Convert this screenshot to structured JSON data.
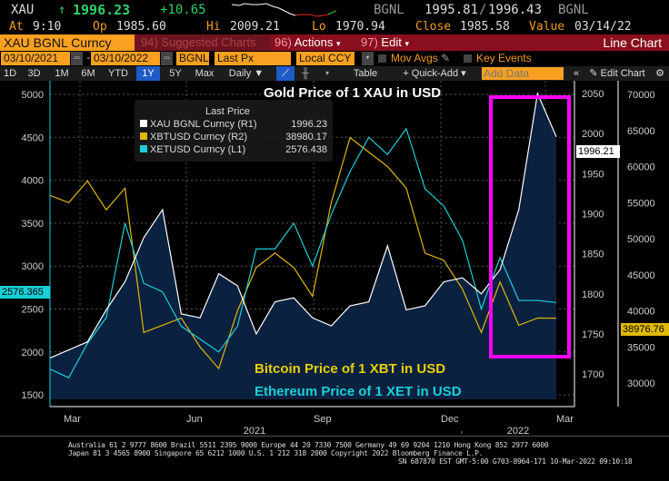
{
  "quote": {
    "ticker": "XAU",
    "arrow": "↑",
    "last": "1996.23",
    "change": "+10.65",
    "source": "BGNL",
    "bid_ask": "1995.81",
    "ask": "1996.43",
    "source2": "BGNL",
    "at_label": "At",
    "at": "9:10",
    "op_label": "Op",
    "op": "1985.60",
    "hi_label": "Hi",
    "hi": "2009.21",
    "lo_label": "Lo",
    "lo": "1970.94",
    "close_label": "Close",
    "close": "1985.58",
    "value_label": "Value",
    "value": "03/14/22"
  },
  "menu": {
    "security": "XAU BGNL Curncy",
    "suggested_num": "94)",
    "suggested": "Suggested Charts",
    "actions_num": "96)",
    "actions": "Actions",
    "edit_num": "97)",
    "edit": "Edit",
    "chart_type": "Line Chart"
  },
  "controls": {
    "start": "03/10/2021",
    "sep": "-",
    "end": "03/10/2022",
    "source": "BGNL",
    "field": "Last Px",
    "ccy": "Local CCY",
    "mov_avgs": "Mov Avgs",
    "key_events": "Key Events"
  },
  "toolbar": {
    "periods": [
      "1D",
      "3D",
      "1M",
      "6M",
      "YTD",
      "1Y",
      "5Y",
      "Max"
    ],
    "selected": "1Y",
    "freq": "Daily ▼",
    "table": "Table",
    "quick_add": "+ Quick-Add ▾",
    "add_data_placeholder": "Add Data",
    "collapse": "«",
    "edit_chart": "✎ Edit Chart",
    "settings": "⚙"
  },
  "colors": {
    "gold": "#ffffff",
    "btc": "#e0b800",
    "eth": "#1ad0d8",
    "fill": "#0b2140",
    "highlight": "#ff00ff"
  },
  "chart_data": {
    "type": "line",
    "title": "Gold  Price of 1 XAU in USD",
    "annotations": [
      "Bitcoin Price of 1 XBT in USD",
      "Ethereum Price of 1 XET in USD"
    ],
    "legend": {
      "title": "Last Price",
      "placement": "top-left",
      "entries": [
        {
          "name": "XAU BGNL Curncy",
          "axis": "(R1)",
          "value": "1996.23"
        },
        {
          "name": "XBTUSD Curncy",
          "axis": "(R2)",
          "value": "38980.17"
        },
        {
          "name": "XETUSD Curncy",
          "axis": "(L1)",
          "value": "2576.438"
        }
      ]
    },
    "x": [
      "2021-03-10",
      "2021-03-24",
      "2021-04-07",
      "2021-04-21",
      "2021-05-05",
      "2021-05-19",
      "2021-06-02",
      "2021-06-16",
      "2021-06-30",
      "2021-07-14",
      "2021-07-28",
      "2021-08-11",
      "2021-08-25",
      "2021-09-08",
      "2021-09-22",
      "2021-10-06",
      "2021-10-20",
      "2021-11-03",
      "2021-11-17",
      "2021-12-01",
      "2021-12-15",
      "2021-12-29",
      "2022-01-12",
      "2022-01-26",
      "2022-02-09",
      "2022-02-23",
      "2022-03-08",
      "2022-03-10"
    ],
    "x_ticks": [
      "Mar",
      "Jun",
      "Sep",
      "Dec",
      "Mar"
    ],
    "years": [
      "2021",
      "2022"
    ],
    "series": [
      {
        "name": "XAU BGNL Curncy",
        "axis": "R1",
        "values": [
          1720,
          1730,
          1740,
          1780,
          1815,
          1870,
          1905,
          1775,
          1770,
          1825,
          1810,
          1750,
          1790,
          1795,
          1770,
          1760,
          1785,
          1790,
          1860,
          1780,
          1785,
          1815,
          1820,
          1800,
          1830,
          1905,
          2050,
          1996
        ]
      },
      {
        "name": "XBTUSD Curncy",
        "axis": "R2",
        "values": [
          56000,
          55000,
          58000,
          54000,
          57000,
          37000,
          38000,
          39000,
          35000,
          32000,
          40000,
          46000,
          48000,
          46000,
          42000,
          55000,
          64000,
          62000,
          60000,
          57000,
          48000,
          47000,
          43000,
          37000,
          44000,
          38000,
          39000,
          38980
        ]
      },
      {
        "name": "XETUSD Curncy",
        "axis": "L1",
        "values": [
          1800,
          1700,
          2100,
          2400,
          3500,
          2800,
          2700,
          2300,
          2150,
          2000,
          2300,
          3200,
          3200,
          3500,
          3000,
          3600,
          4100,
          4500,
          4300,
          4600,
          3900,
          3700,
          3300,
          2500,
          3100,
          2600,
          2600,
          2576
        ]
      }
    ],
    "axes": {
      "left": {
        "ticks": [
          1500,
          2000,
          2500,
          3000,
          3500,
          4000,
          4500,
          5000
        ],
        "range": [
          1400,
          5100
        ]
      },
      "right1": {
        "ticks": [
          1700,
          1750,
          1800,
          1850,
          1900,
          1950,
          2000,
          2050
        ],
        "range": [
          1690,
          2065
        ]
      },
      "right2": {
        "ticks": [
          30000,
          35000,
          40000,
          45000,
          50000,
          55000,
          60000,
          65000,
          70000
        ],
        "range": [
          28000,
          72000
        ]
      }
    },
    "price_tags": {
      "left": "2576.365",
      "right1": "1996.21",
      "right2": "38976.76"
    },
    "grid": true
  },
  "footer": {
    "line1": "Australia 61 2 9777 8600 Brazil 5511 2395 9000 Europe 44 20 7330 7500 Germany 49 69 9204 1210 Hong Kong 852 2977 6000",
    "line2": "Japan 81 3 4565 8900      Singapore 65 6212 1000      U.S. 1 212 318 2000        Copyright 2022 Bloomberg Finance L.P.",
    "line3": "SN 687870 EST  GMT-5:00 G703-8964-171 10-Mar-2022 09:10:18"
  }
}
